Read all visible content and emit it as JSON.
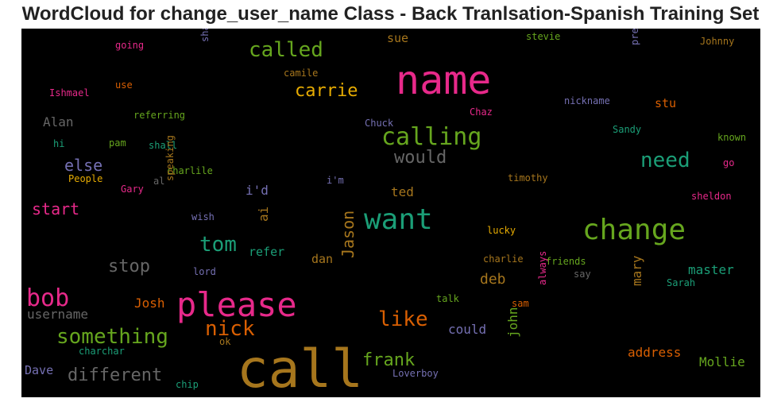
{
  "chart_data": {
    "type": "wordcloud",
    "title": "WordCloud for change_user_name Class - Back Tranlsation-Spanish Training Set",
    "background": "#000000",
    "words": [
      {
        "text": "call",
        "color": "#a6761d",
        "weight": 66
      },
      {
        "text": "name",
        "color": "#e7298a",
        "weight": 50
      },
      {
        "text": "please",
        "color": "#e7298a",
        "weight": 42
      },
      {
        "text": "want",
        "color": "#1b9e77",
        "weight": 36
      },
      {
        "text": "change",
        "color": "#66a61e",
        "weight": 36
      },
      {
        "text": "calling",
        "color": "#66a61e",
        "weight": 30
      },
      {
        "text": "bob",
        "color": "#e7298a",
        "weight": 30
      },
      {
        "text": "something",
        "color": "#66a61e",
        "weight": 26
      },
      {
        "text": "called",
        "color": "#66a61e",
        "weight": 26
      },
      {
        "text": "tom",
        "color": "#1b9e77",
        "weight": 26
      },
      {
        "text": "nick",
        "color": "#d95f02",
        "weight": 26
      },
      {
        "text": "like",
        "color": "#d95f02",
        "weight": 26
      },
      {
        "text": "need",
        "color": "#1b9e77",
        "weight": 26
      },
      {
        "text": "carrie",
        "color": "#e6ab02",
        "weight": 22
      },
      {
        "text": "would",
        "color": "#666666",
        "weight": 22
      },
      {
        "text": "different",
        "color": "#666666",
        "weight": 22
      },
      {
        "text": "frank",
        "color": "#66a61e",
        "weight": 22
      },
      {
        "text": "stop",
        "color": "#666666",
        "weight": 22
      },
      {
        "text": "start",
        "color": "#e7298a",
        "weight": 20
      },
      {
        "text": "Jason",
        "color": "#a6761d",
        "weight": 20
      },
      {
        "text": "else",
        "color": "#7570b3",
        "weight": 20
      },
      {
        "text": "deb",
        "color": "#a6761d",
        "weight": 18
      },
      {
        "text": "Alan",
        "color": "#666666",
        "weight": 16
      },
      {
        "text": "i'd",
        "color": "#7570b3",
        "weight": 16
      },
      {
        "text": "ai",
        "color": "#a6761d",
        "weight": 16
      },
      {
        "text": "ted",
        "color": "#a6761d",
        "weight": 16
      },
      {
        "text": "Josh",
        "color": "#d95f02",
        "weight": 16
      },
      {
        "text": "username",
        "color": "#666666",
        "weight": 16
      },
      {
        "text": "could",
        "color": "#7570b3",
        "weight": 16
      },
      {
        "text": "john",
        "color": "#66a61e",
        "weight": 16
      },
      {
        "text": "address",
        "color": "#d95f02",
        "weight": 16
      },
      {
        "text": "Mollie",
        "color": "#66a61e",
        "weight": 16
      },
      {
        "text": "master",
        "color": "#1b9e77",
        "weight": 16
      },
      {
        "text": "mary",
        "color": "#a6761d",
        "weight": 16
      },
      {
        "text": "sue",
        "color": "#a6761d",
        "weight": 15
      },
      {
        "text": "stu",
        "color": "#d95f02",
        "weight": 15
      },
      {
        "text": "dan",
        "color": "#a6761d",
        "weight": 15
      },
      {
        "text": "refer",
        "color": "#1b9e77",
        "weight": 15
      },
      {
        "text": "Dave",
        "color": "#7570b3",
        "weight": 15
      },
      {
        "text": "shane",
        "color": "#7570b3",
        "weight": 12
      },
      {
        "text": "camile",
        "color": "#a6761d",
        "weight": 12
      },
      {
        "text": "going",
        "color": "#e7298a",
        "weight": 12
      },
      {
        "text": "use",
        "color": "#d95f02",
        "weight": 12
      },
      {
        "text": "Ishmael",
        "color": "#e7298a",
        "weight": 12
      },
      {
        "text": "referring",
        "color": "#66a61e",
        "weight": 12
      },
      {
        "text": "hi",
        "color": "#1b9e77",
        "weight": 12
      },
      {
        "text": "pam",
        "color": "#66a61e",
        "weight": 12
      },
      {
        "text": "shall",
        "color": "#1b9e77",
        "weight": 12
      },
      {
        "text": "charlile",
        "color": "#66a61e",
        "weight": 12
      },
      {
        "text": "People",
        "color": "#e6ab02",
        "weight": 12
      },
      {
        "text": "al",
        "color": "#666666",
        "weight": 12
      },
      {
        "text": "Gary",
        "color": "#e7298a",
        "weight": 12
      },
      {
        "text": "speaking",
        "color": "#a6761d",
        "weight": 12
      },
      {
        "text": "wish",
        "color": "#7570b3",
        "weight": 12
      },
      {
        "text": "lord",
        "color": "#7570b3",
        "weight": 12
      },
      {
        "text": "ok",
        "color": "#a6761d",
        "weight": 12
      },
      {
        "text": "charchar",
        "color": "#1b9e77",
        "weight": 12
      },
      {
        "text": "chip",
        "color": "#1b9e77",
        "weight": 12
      },
      {
        "text": "stevie",
        "color": "#66a61e",
        "weight": 12
      },
      {
        "text": "Johnny",
        "color": "#a6761d",
        "weight": 12
      },
      {
        "text": "prefer",
        "color": "#7570b3",
        "weight": 12
      },
      {
        "text": "nickname",
        "color": "#7570b3",
        "weight": 12
      },
      {
        "text": "Chaz",
        "color": "#e7298a",
        "weight": 12
      },
      {
        "text": "Chuck",
        "color": "#7570b3",
        "weight": 12
      },
      {
        "text": "Sandy",
        "color": "#1b9e77",
        "weight": 12
      },
      {
        "text": "known",
        "color": "#66a61e",
        "weight": 12
      },
      {
        "text": "go",
        "color": "#e7298a",
        "weight": 12
      },
      {
        "text": "i'm",
        "color": "#7570b3",
        "weight": 12
      },
      {
        "text": "timothy",
        "color": "#a6761d",
        "weight": 12
      },
      {
        "text": "sheldon",
        "color": "#e7298a",
        "weight": 12
      },
      {
        "text": "lucky",
        "color": "#e6ab02",
        "weight": 12
      },
      {
        "text": "charlie",
        "color": "#a6761d",
        "weight": 12
      },
      {
        "text": "friends",
        "color": "#66a61e",
        "weight": 12
      },
      {
        "text": "say",
        "color": "#666666",
        "weight": 12
      },
      {
        "text": "Sarah",
        "color": "#1b9e77",
        "weight": 12
      },
      {
        "text": "always",
        "color": "#e7298a",
        "weight": 12
      },
      {
        "text": "talk",
        "color": "#66a61e",
        "weight": 12
      },
      {
        "text": "sam",
        "color": "#d95f02",
        "weight": 12
      },
      {
        "text": "Loverboy",
        "color": "#7570b3",
        "weight": 12
      }
    ]
  }
}
